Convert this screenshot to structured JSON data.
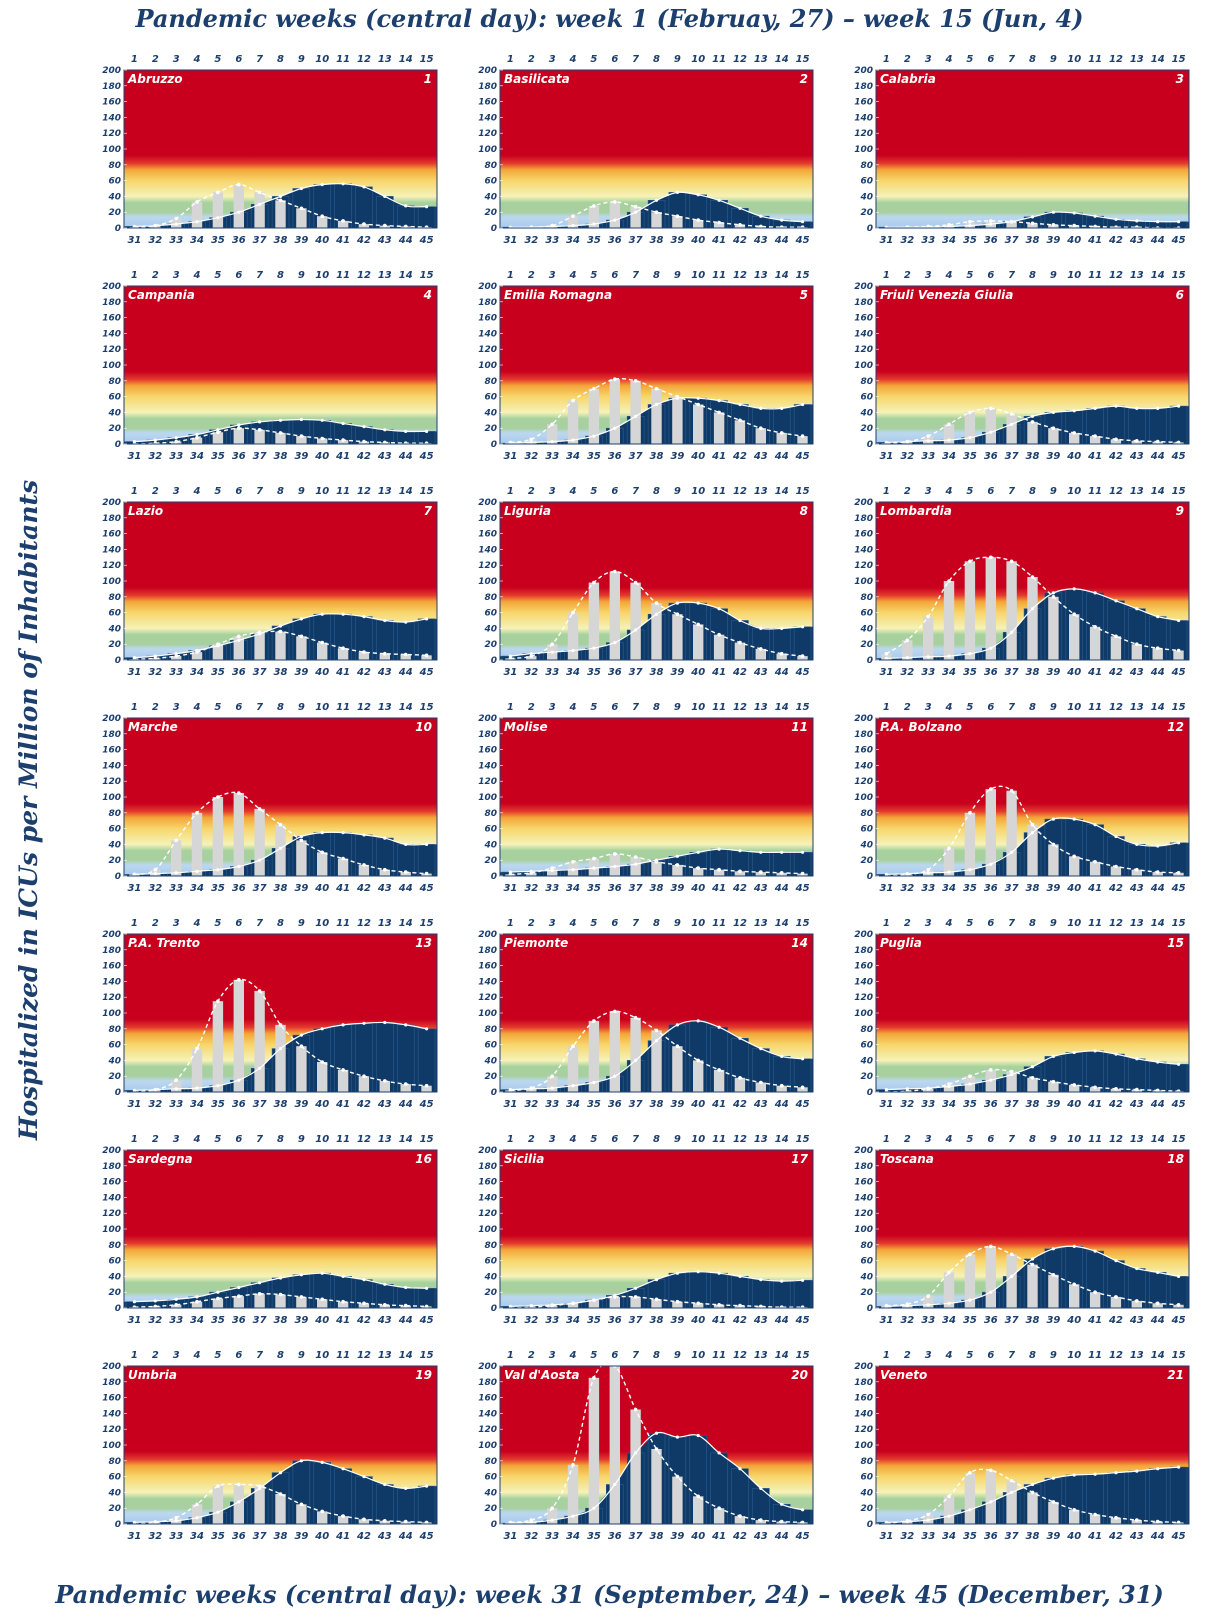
{
  "header": {
    "title": "Pandemic weeks (central day):  week 1 (Februay, 27)  – week 15 (Jun, 4)"
  },
  "footer": {
    "title": "Pandemic weeks (central day):  week 31 (September, 24)  – week 45 (December, 31)"
  },
  "yaxis_label": "Hospitalized in ICUs per Million of Inhabitants",
  "chart_data": {
    "type": "bar",
    "top_weeks": [
      "1",
      "2",
      "3",
      "4",
      "5",
      "6",
      "7",
      "8",
      "9",
      "10",
      "11",
      "12",
      "13",
      "14",
      "15"
    ],
    "bottom_weeks": [
      "31",
      "32",
      "33",
      "34",
      "35",
      "36",
      "37",
      "38",
      "39",
      "40",
      "41",
      "42",
      "43",
      "44",
      "45"
    ],
    "yticks": [
      "0",
      "20",
      "40",
      "60",
      "80",
      "100",
      "120",
      "140",
      "160",
      "180",
      "200"
    ],
    "ylim": [
      0,
      200
    ],
    "colors": {
      "second_wave": "#0f3a67",
      "first_wave": "#d6d6d6",
      "red": "#c8001e",
      "text": "#1c3f6e"
    },
    "panels": [
      {
        "region": "Abruzzo",
        "number": "1",
        "first_wave": [
          1,
          3,
          12,
          33,
          45,
          55,
          45,
          35,
          25,
          15,
          9,
          5,
          3,
          2,
          1
        ],
        "second_wave": [
          2,
          3,
          5,
          8,
          13,
          20,
          30,
          40,
          50,
          55,
          56,
          52,
          40,
          28,
          27
        ]
      },
      {
        "region": "Basilicata",
        "number": "2",
        "first_wave": [
          0,
          1,
          3,
          15,
          28,
          33,
          27,
          20,
          15,
          10,
          7,
          4,
          2,
          1,
          1
        ],
        "second_wave": [
          1,
          1,
          2,
          3,
          5,
          10,
          20,
          35,
          45,
          42,
          35,
          25,
          15,
          10,
          8
        ]
      },
      {
        "region": "Calabria",
        "number": "3",
        "first_wave": [
          0,
          1,
          2,
          4,
          8,
          9,
          8,
          6,
          4,
          3,
          2,
          1,
          1,
          0,
          0
        ],
        "second_wave": [
          1,
          1,
          1,
          2,
          3,
          5,
          8,
          14,
          20,
          19,
          15,
          11,
          9,
          8,
          8
        ]
      },
      {
        "region": "Campania",
        "number": "4",
        "first_wave": [
          0,
          1,
          3,
          8,
          15,
          20,
          18,
          14,
          10,
          7,
          5,
          3,
          2,
          1,
          1
        ],
        "second_wave": [
          3,
          5,
          8,
          12,
          18,
          24,
          28,
          30,
          31,
          30,
          26,
          22,
          18,
          16,
          16
        ]
      },
      {
        "region": "Emilia Romagna",
        "number": "5",
        "first_wave": [
          2,
          6,
          25,
          55,
          70,
          82,
          80,
          70,
          60,
          50,
          40,
          30,
          20,
          14,
          10
        ],
        "second_wave": [
          1,
          2,
          3,
          5,
          10,
          20,
          35,
          50,
          58,
          58,
          55,
          50,
          45,
          45,
          50
        ]
      },
      {
        "region": "Friuli Venezia Giulia",
        "number": "6",
        "first_wave": [
          1,
          3,
          10,
          25,
          40,
          45,
          38,
          28,
          20,
          14,
          10,
          6,
          4,
          3,
          2
        ],
        "second_wave": [
          2,
          3,
          4,
          5,
          8,
          15,
          25,
          35,
          40,
          42,
          45,
          48,
          45,
          45,
          48
        ]
      },
      {
        "region": "Lazio",
        "number": "7",
        "first_wave": [
          1,
          2,
          5,
          10,
          20,
          30,
          35,
          36,
          30,
          22,
          15,
          10,
          8,
          7,
          6
        ],
        "second_wave": [
          3,
          5,
          8,
          12,
          18,
          25,
          33,
          43,
          52,
          58,
          58,
          55,
          50,
          48,
          52
        ]
      },
      {
        "region": "Liguria",
        "number": "8",
        "first_wave": [
          2,
          5,
          20,
          60,
          98,
          112,
          98,
          72,
          58,
          45,
          32,
          22,
          14,
          8,
          5
        ],
        "second_wave": [
          5,
          8,
          10,
          12,
          15,
          22,
          38,
          58,
          72,
          72,
          65,
          50,
          40,
          40,
          42
        ]
      },
      {
        "region": "Lombardia",
        "number": "9",
        "first_wave": [
          8,
          25,
          55,
          100,
          125,
          130,
          125,
          105,
          80,
          58,
          42,
          30,
          20,
          15,
          12
        ],
        "second_wave": [
          2,
          3,
          4,
          5,
          8,
          15,
          35,
          65,
          85,
          90,
          85,
          75,
          65,
          55,
          50
        ]
      },
      {
        "region": "Marche",
        "number": "10",
        "first_wave": [
          2,
          8,
          45,
          80,
          100,
          105,
          85,
          65,
          45,
          30,
          22,
          14,
          8,
          5,
          3
        ],
        "second_wave": [
          2,
          3,
          4,
          6,
          8,
          12,
          20,
          35,
          50,
          55,
          55,
          52,
          48,
          40,
          40
        ]
      },
      {
        "region": "Molise",
        "number": "11",
        "first_wave": [
          2,
          4,
          10,
          18,
          22,
          28,
          24,
          18,
          14,
          10,
          8,
          6,
          5,
          4,
          3
        ],
        "second_wave": [
          5,
          6,
          7,
          8,
          10,
          12,
          15,
          20,
          25,
          30,
          34,
          32,
          30,
          30,
          30
        ]
      },
      {
        "region": "P.A. Bolzano",
        "number": "12",
        "first_wave": [
          0,
          2,
          8,
          35,
          80,
          110,
          108,
          65,
          40,
          25,
          18,
          12,
          8,
          5,
          4
        ],
        "second_wave": [
          2,
          3,
          4,
          5,
          8,
          15,
          30,
          55,
          72,
          72,
          65,
          50,
          40,
          38,
          42
        ]
      },
      {
        "region": "P.A. Trento",
        "number": "13",
        "first_wave": [
          0,
          3,
          15,
          55,
          115,
          142,
          128,
          85,
          58,
          38,
          28,
          20,
          14,
          10,
          8
        ],
        "second_wave": [
          2,
          3,
          4,
          5,
          8,
          15,
          30,
          55,
          72,
          80,
          85,
          87,
          88,
          85,
          80
        ]
      },
      {
        "region": "Piemonte",
        "number": "14",
        "first_wave": [
          2,
          5,
          20,
          58,
          90,
          102,
          94,
          78,
          58,
          40,
          28,
          18,
          12,
          8,
          6
        ],
        "second_wave": [
          3,
          4,
          5,
          8,
          12,
          20,
          40,
          65,
          85,
          90,
          82,
          68,
          55,
          45,
          42
        ]
      },
      {
        "region": "Puglia",
        "number": "15",
        "first_wave": [
          0,
          1,
          4,
          10,
          20,
          28,
          26,
          18,
          13,
          9,
          6,
          4,
          3,
          2,
          1
        ],
        "second_wave": [
          3,
          4,
          5,
          7,
          10,
          15,
          22,
          32,
          45,
          50,
          52,
          48,
          42,
          38,
          35
        ]
      },
      {
        "region": "Sardegna",
        "number": "16",
        "first_wave": [
          1,
          2,
          4,
          8,
          12,
          15,
          18,
          17,
          14,
          11,
          8,
          6,
          4,
          3,
          2
        ],
        "second_wave": [
          8,
          9,
          11,
          14,
          20,
          26,
          32,
          38,
          42,
          44,
          40,
          36,
          30,
          26,
          25
        ]
      },
      {
        "region": "Sicilia",
        "number": "17",
        "first_wave": [
          0,
          1,
          3,
          6,
          10,
          14,
          14,
          11,
          8,
          6,
          4,
          3,
          2,
          1,
          1
        ],
        "second_wave": [
          2,
          3,
          4,
          6,
          10,
          16,
          25,
          36,
          44,
          46,
          44,
          40,
          36,
          34,
          35
        ]
      },
      {
        "region": "Toscana",
        "number": "18",
        "first_wave": [
          3,
          5,
          15,
          45,
          68,
          78,
          68,
          55,
          42,
          30,
          20,
          14,
          9,
          6,
          4
        ],
        "second_wave": [
          2,
          3,
          4,
          6,
          10,
          20,
          40,
          62,
          75,
          78,
          72,
          60,
          50,
          45,
          40
        ]
      },
      {
        "region": "Umbria",
        "number": "19",
        "first_wave": [
          0,
          2,
          8,
          25,
          48,
          50,
          48,
          38,
          25,
          16,
          10,
          6,
          4,
          3,
          2
        ],
        "second_wave": [
          2,
          3,
          4,
          8,
          15,
          28,
          45,
          65,
          80,
          78,
          70,
          60,
          50,
          45,
          48
        ]
      },
      {
        "region": "Val d'Aosta",
        "number": "20",
        "first_wave": [
          2,
          5,
          20,
          75,
          185,
          200,
          145,
          95,
          60,
          35,
          20,
          10,
          5,
          3,
          2
        ],
        "second_wave": [
          1,
          2,
          5,
          10,
          20,
          50,
          90,
          115,
          110,
          112,
          90,
          70,
          45,
          25,
          18
        ]
      },
      {
        "region": "Veneto",
        "number": "21",
        "first_wave": [
          1,
          4,
          12,
          35,
          65,
          68,
          55,
          40,
          28,
          18,
          12,
          8,
          5,
          3,
          2
        ],
        "second_wave": [
          2,
          3,
          5,
          10,
          18,
          28,
          40,
          50,
          58,
          62,
          63,
          65,
          67,
          70,
          72
        ]
      }
    ]
  }
}
